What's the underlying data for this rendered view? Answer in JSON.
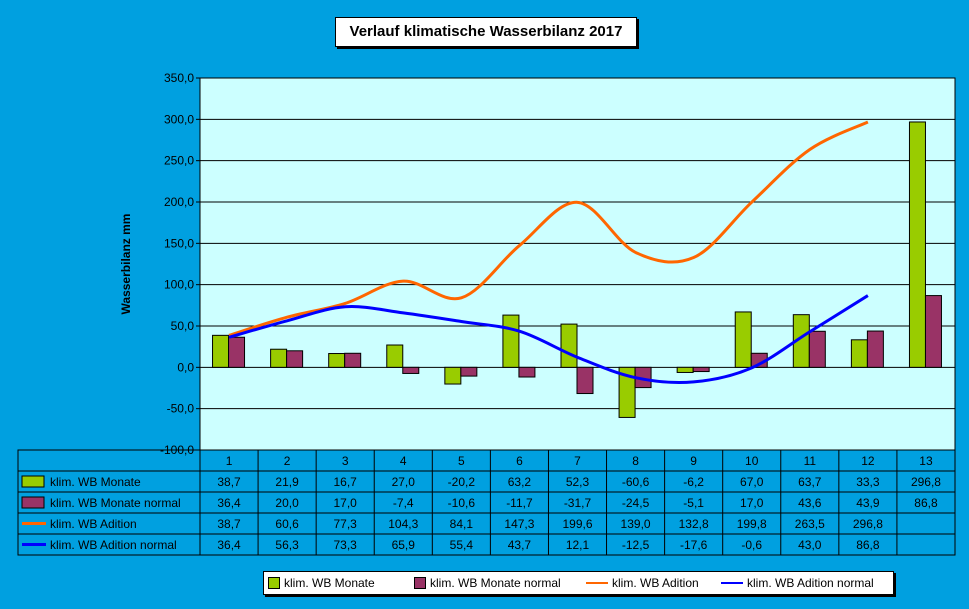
{
  "chart_data": {
    "type": "bar",
    "title": "Verlauf klimatische Wasserbilanz 2017",
    "ylabel": "Wasserbilanz mm",
    "xlabel": "",
    "ylim": [
      -100,
      350
    ],
    "yticks": [
      "350,0",
      "300,0",
      "250,0",
      "200,0",
      "150,0",
      "100,0",
      "50,0",
      "0,0",
      "-50,0",
      "-100,0"
    ],
    "ytick_values": [
      350,
      300,
      250,
      200,
      150,
      100,
      50,
      0,
      -50,
      -100
    ],
    "categories": [
      "1",
      "2",
      "3",
      "4",
      "5",
      "6",
      "7",
      "8",
      "9",
      "10",
      "11",
      "12",
      "13"
    ],
    "grid": "horizontal",
    "legend_position": "bottom",
    "series": [
      {
        "name": "klim. WB Monate",
        "kind": "bar",
        "color": "#99cc00",
        "values": [
          38.7,
          21.9,
          16.7,
          27.0,
          -20.2,
          63.2,
          52.3,
          -60.6,
          -6.2,
          67.0,
          63.7,
          33.3,
          296.8
        ],
        "labels": [
          "38,7",
          "21,9",
          "16,7",
          "27,0",
          "-20,2",
          "63,2",
          "52,3",
          "-60,6",
          "-6,2",
          "67,0",
          "63,7",
          "33,3",
          "296,8"
        ]
      },
      {
        "name": "klim. WB Monate normal",
        "kind": "bar",
        "color": "#993366",
        "values": [
          36.4,
          20.0,
          17.0,
          -7.4,
          -10.6,
          -11.7,
          -31.7,
          -24.5,
          -5.1,
          17.0,
          43.6,
          43.9,
          86.8
        ],
        "labels": [
          "36,4",
          "20,0",
          "17,0",
          "-7,4",
          "-10,6",
          "-11,7",
          "-31,7",
          "-24,5",
          "-5,1",
          "17,0",
          "43,6",
          "43,9",
          "86,8"
        ]
      },
      {
        "name": "klim. WB Adition",
        "kind": "line",
        "color": "#ff6600",
        "values": [
          38.7,
          60.6,
          77.3,
          104.3,
          84.1,
          147.3,
          199.6,
          139.0,
          132.8,
          199.8,
          263.5,
          296.8,
          null
        ],
        "labels": [
          "38,7",
          "60,6",
          "77,3",
          "104,3",
          "84,1",
          "147,3",
          "199,6",
          "139,0",
          "132,8",
          "199,8",
          "263,5",
          "296,8",
          ""
        ]
      },
      {
        "name": "klim. WB Adition normal",
        "kind": "line",
        "color": "#0000ff",
        "values": [
          36.4,
          56.3,
          73.3,
          65.9,
          55.4,
          43.7,
          12.1,
          -12.5,
          -17.6,
          -0.6,
          43.0,
          86.8,
          null
        ],
        "labels": [
          "36,4",
          "56,3",
          "73,3",
          "65,9",
          "55,4",
          "43,7",
          "12,1",
          "-12,5",
          "-17,6",
          "-0,6",
          "43,0",
          "86,8",
          ""
        ]
      }
    ]
  }
}
